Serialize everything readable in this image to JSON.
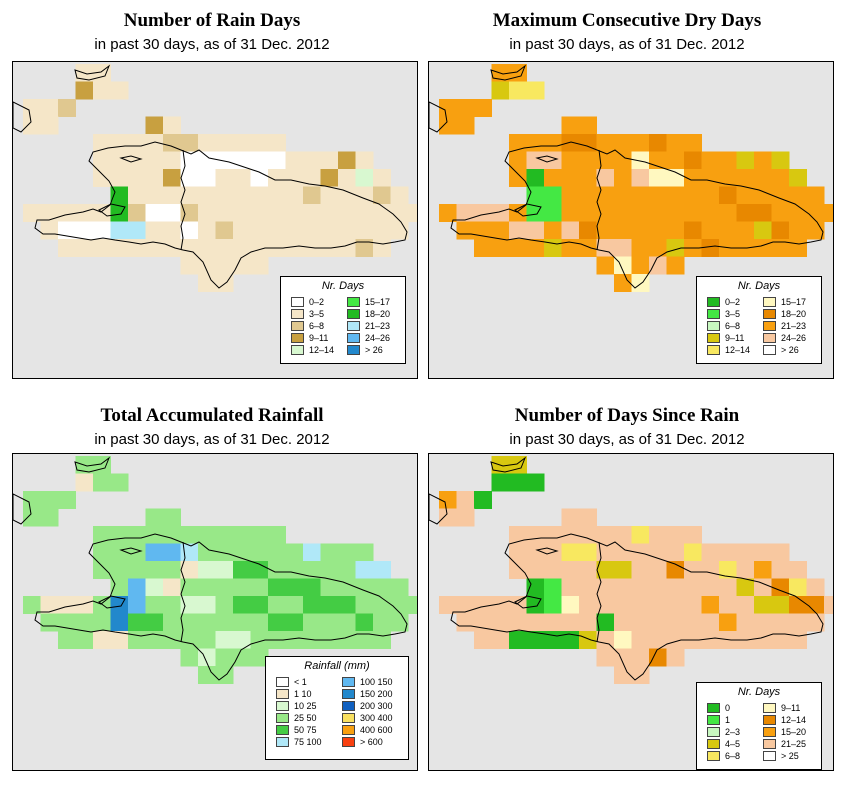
{
  "panels": [
    {
      "id": "rain-days",
      "title": "Number of Rain Days",
      "subtitle": "in past 30 days, as of  31 Dec. 2012",
      "legend": {
        "title": "Nr. Days",
        "items": [
          {
            "label": "0–2",
            "color": "#ffffff"
          },
          {
            "label": "3–5",
            "color": "#f5e6c8"
          },
          {
            "label": "6–8",
            "color": "#e0c890"
          },
          {
            "label": "9–11",
            "color": "#c8a040"
          },
          {
            "label": "12–14",
            "color": "#d8f8d0"
          },
          {
            "label": "15–17",
            "color": "#44e844"
          },
          {
            "label": "18–20",
            "color": "#22bb22"
          },
          {
            "label": "21–23",
            "color": "#b0e8f8"
          },
          {
            "label": "24–26",
            "color": "#60b8f0"
          },
          {
            "label": "> 26",
            "color": "#2288cc"
          }
        ]
      },
      "base_color": "#f5e6c8",
      "accents": [
        {
          "color": "#ffffff",
          "cells": [
            [
              9,
              5
            ],
            [
              10,
              5
            ],
            [
              11,
              5
            ],
            [
              12,
              5
            ],
            [
              13,
              5
            ],
            [
              14,
              5
            ],
            [
              9,
              6
            ],
            [
              10,
              6
            ],
            [
              13,
              6
            ],
            [
              7,
              8
            ],
            [
              8,
              8
            ],
            [
              9,
              9
            ],
            [
              2,
              9
            ],
            [
              3,
              9
            ],
            [
              4,
              9
            ],
            [
              19,
              11
            ],
            [
              20,
              11
            ]
          ]
        },
        {
          "color": "#e0c890",
          "cells": [
            [
              2,
              2
            ],
            [
              3,
              2
            ],
            [
              8,
              4
            ],
            [
              9,
              4
            ],
            [
              15,
              4
            ],
            [
              20,
              5
            ],
            [
              22,
              5
            ],
            [
              16,
              7
            ],
            [
              20,
              7
            ],
            [
              6,
              8
            ],
            [
              9,
              8
            ],
            [
              11,
              9
            ],
            [
              19,
              10
            ]
          ]
        },
        {
          "color": "#c8a040",
          "cells": [
            [
              3,
              1
            ],
            [
              7,
              3
            ],
            [
              8,
              6
            ],
            [
              17,
              6
            ],
            [
              18,
              5
            ]
          ]
        },
        {
          "color": "#22bb22",
          "cells": [
            [
              5,
              7
            ],
            [
              5,
              8
            ],
            [
              6,
              9
            ]
          ]
        },
        {
          "color": "#b0e8f8",
          "cells": [
            [
              5,
              9
            ],
            [
              6,
              9
            ]
          ]
        },
        {
          "color": "#d8f8d0",
          "cells": [
            [
              19,
              6
            ]
          ]
        }
      ]
    },
    {
      "id": "max-dry",
      "title": "Maximum Consecutive Dry Days",
      "subtitle": "in past 30 days, as of  31 Dec. 2012",
      "legend": {
        "title": "Nr. Days",
        "items": [
          {
            "label": "0–2",
            "color": "#22bb22"
          },
          {
            "label": "3–5",
            "color": "#44e844"
          },
          {
            "label": "6–8",
            "color": "#c8f8c0"
          },
          {
            "label": "9–11",
            "color": "#d8c810"
          },
          {
            "label": "12–14",
            "color": "#f8e860"
          },
          {
            "label": "15–17",
            "color": "#fff8c0"
          },
          {
            "label": "18–20",
            "color": "#e88800"
          },
          {
            "label": "21–23",
            "color": "#f8a010"
          },
          {
            "label": "24–26",
            "color": "#f8c8a0"
          },
          {
            "label": "> 26",
            "color": "#ffffff"
          }
        ]
      },
      "base_color": "#f8a010",
      "accents": [
        {
          "color": "#f8c8a0",
          "cells": [
            [
              1,
              8
            ],
            [
              2,
              8
            ],
            [
              3,
              8
            ],
            [
              4,
              9
            ],
            [
              5,
              9
            ],
            [
              7,
              9
            ],
            [
              9,
              10
            ],
            [
              10,
              10
            ],
            [
              12,
              11
            ],
            [
              5,
              5
            ],
            [
              6,
              5
            ],
            [
              9,
              6
            ],
            [
              11,
              6
            ]
          ]
        },
        {
          "color": "#e88800",
          "cells": [
            [
              7,
              4
            ],
            [
              8,
              4
            ],
            [
              12,
              4
            ],
            [
              14,
              5
            ],
            [
              16,
              7
            ],
            [
              17,
              8
            ],
            [
              18,
              8
            ],
            [
              19,
              9
            ],
            [
              8,
              9
            ],
            [
              14,
              9
            ],
            [
              15,
              10
            ]
          ]
        },
        {
          "color": "#d8c810",
          "cells": [
            [
              2,
              3
            ],
            [
              3,
              1
            ],
            [
              4,
              2
            ],
            [
              7,
              2
            ],
            [
              17,
              5
            ],
            [
              19,
              5
            ],
            [
              20,
              6
            ],
            [
              18,
              9
            ],
            [
              13,
              10
            ],
            [
              6,
              10
            ],
            [
              8,
              11
            ],
            [
              10,
              11
            ]
          ]
        },
        {
          "color": "#44e844",
          "cells": [
            [
              5,
              7
            ],
            [
              6,
              7
            ],
            [
              5,
              8
            ],
            [
              6,
              8
            ]
          ]
        },
        {
          "color": "#22bb22",
          "cells": [
            [
              5,
              6
            ]
          ]
        },
        {
          "color": "#fff8c0",
          "cells": [
            [
              12,
              6
            ],
            [
              13,
              6
            ],
            [
              11,
              5
            ],
            [
              10,
              11
            ],
            [
              11,
              12
            ]
          ]
        },
        {
          "color": "#f8e860",
          "cells": [
            [
              1,
              1
            ],
            [
              2,
              1
            ],
            [
              4,
              1
            ],
            [
              5,
              1
            ],
            [
              3,
              2
            ]
          ]
        }
      ]
    },
    {
      "id": "total-rainfall",
      "title": "Total Accumulated Rainfall",
      "subtitle": "in past 30 days, as of  31 Dec. 2012",
      "legend": {
        "title": "Rainfall (mm)",
        "items": [
          {
            "label": "< 1",
            "color": "#ffffff"
          },
          {
            "label": "1   10",
            "color": "#f5e6c8"
          },
          {
            "label": "10   25",
            "color": "#d8f8d0"
          },
          {
            "label": "25   50",
            "color": "#98e888"
          },
          {
            "label": "50   75",
            "color": "#44cc44"
          },
          {
            "label": "75   100",
            "color": "#b0e8f8"
          },
          {
            "label": "100   150",
            "color": "#60b8f0"
          },
          {
            "label": "150   200",
            "color": "#2288cc"
          },
          {
            "label": "200   300",
            "color": "#1060c0"
          },
          {
            "label": "300   400",
            "color": "#f8e060"
          },
          {
            "label": "400   600",
            "color": "#f8a010"
          },
          {
            "label": "> 600",
            "color": "#f84010"
          }
        ]
      },
      "base_color": "#98e888",
      "accents": [
        {
          "color": "#44cc44",
          "cells": [
            [
              12,
              6
            ],
            [
              13,
              6
            ],
            [
              14,
              7
            ],
            [
              15,
              7
            ],
            [
              16,
              8
            ],
            [
              17,
              8
            ],
            [
              18,
              8
            ],
            [
              19,
              9
            ],
            [
              14,
              9
            ],
            [
              15,
              9
            ],
            [
              16,
              7
            ],
            [
              12,
              8
            ],
            [
              13,
              8
            ],
            [
              6,
              9
            ],
            [
              7,
              9
            ]
          ]
        },
        {
          "color": "#d8f8d0",
          "cells": [
            [
              10,
              6
            ],
            [
              11,
              6
            ],
            [
              9,
              8
            ],
            [
              10,
              8
            ],
            [
              11,
              10
            ],
            [
              12,
              10
            ],
            [
              10,
              11
            ],
            [
              7,
              7
            ],
            [
              8,
              7
            ]
          ]
        },
        {
          "color": "#f5e6c8",
          "cells": [
            [
              1,
              8
            ],
            [
              2,
              8
            ],
            [
              3,
              8
            ],
            [
              8,
              7
            ],
            [
              9,
              6
            ],
            [
              4,
              10
            ],
            [
              5,
              10
            ],
            [
              3,
              1
            ]
          ]
        },
        {
          "color": "#60b8f0",
          "cells": [
            [
              7,
              5
            ],
            [
              8,
              5
            ],
            [
              6,
              7
            ],
            [
              6,
              8
            ]
          ]
        },
        {
          "color": "#2288cc",
          "cells": [
            [
              5,
              8
            ],
            [
              5,
              9
            ]
          ]
        },
        {
          "color": "#b0e8f8",
          "cells": [
            [
              16,
              5
            ],
            [
              19,
              6
            ],
            [
              20,
              6
            ],
            [
              9,
              5
            ]
          ]
        }
      ]
    },
    {
      "id": "days-since-rain",
      "title": "Number of Days Since Rain",
      "subtitle": "in past 30 days, as of  31 Dec. 2012",
      "legend": {
        "title": "Nr. Days",
        "items": [
          {
            "label": "0",
            "color": "#22bb22"
          },
          {
            "label": "1",
            "color": "#44e844"
          },
          {
            "label": "2–3",
            "color": "#c8f8c0"
          },
          {
            "label": "4–5",
            "color": "#d8c810"
          },
          {
            "label": "6–8",
            "color": "#f8e860"
          },
          {
            "label": "9–11",
            "color": "#fff8c0"
          },
          {
            "label": "12–14",
            "color": "#e88800"
          },
          {
            "label": "15–20",
            "color": "#f8a010"
          },
          {
            "label": "21–25",
            "color": "#f8c8a0"
          },
          {
            "label": "> 25",
            "color": "#ffffff"
          }
        ]
      },
      "base_color": "#f8c8a0",
      "accents": [
        {
          "color": "#22bb22",
          "cells": [
            [
              3,
              1
            ],
            [
              4,
              1
            ],
            [
              5,
              1
            ],
            [
              5,
              7
            ],
            [
              5,
              8
            ],
            [
              4,
              10
            ],
            [
              5,
              10
            ],
            [
              6,
              10
            ],
            [
              7,
              10
            ],
            [
              9,
              9
            ],
            [
              2,
              2
            ]
          ]
        },
        {
          "color": "#44e844",
          "cells": [
            [
              6,
              8
            ],
            [
              6,
              7
            ]
          ]
        },
        {
          "color": "#d8c810",
          "cells": [
            [
              3,
              0
            ],
            [
              4,
              0
            ],
            [
              9,
              6
            ],
            [
              10,
              6
            ],
            [
              17,
              7
            ],
            [
              18,
              8
            ],
            [
              19,
              8
            ],
            [
              20,
              5
            ],
            [
              8,
              10
            ],
            [
              15,
              11
            ]
          ]
        },
        {
          "color": "#f8e860",
          "cells": [
            [
              7,
              5
            ],
            [
              8,
              5
            ],
            [
              11,
              4
            ],
            [
              14,
              5
            ],
            [
              16,
              6
            ],
            [
              20,
              7
            ]
          ]
        },
        {
          "color": "#e88800",
          "cells": [
            [
              13,
              6
            ],
            [
              19,
              7
            ],
            [
              20,
              8
            ],
            [
              21,
              8
            ],
            [
              12,
              11
            ]
          ]
        },
        {
          "color": "#f8a010",
          "cells": [
            [
              0,
              2
            ],
            [
              18,
              6
            ],
            [
              15,
              8
            ],
            [
              16,
              9
            ]
          ]
        },
        {
          "color": "#fff8c0",
          "cells": [
            [
              10,
              10
            ],
            [
              7,
              8
            ]
          ]
        }
      ]
    }
  ]
}
